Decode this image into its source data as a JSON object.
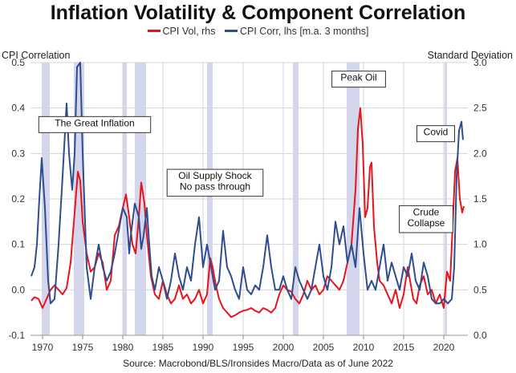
{
  "chart_data": {
    "type": "line",
    "title": "Inflation Volatility & Component Correlation",
    "source": "Source: Macrobond/BLS/Ironsides Macro/Data as of June 2022",
    "left_axis": {
      "label": "CPI Correlation",
      "min": -0.1,
      "max": 0.5,
      "ticks": [
        "-0.1",
        "0.0",
        "0.1",
        "0.2",
        "0.3",
        "0.4",
        "0.5"
      ]
    },
    "right_axis": {
      "label": "Standard Deviation",
      "min": 0.0,
      "max": 3.0,
      "ticks": [
        "0.0",
        "0.5",
        "1.0",
        "1.5",
        "2.0",
        "2.5",
        "3.0"
      ]
    },
    "x_axis": {
      "min": 1968.5,
      "max": 2023,
      "ticks": [
        "1970",
        "1975",
        "1980",
        "1985",
        "1990",
        "1995",
        "2000",
        "2005",
        "2010",
        "2015",
        "2020"
      ]
    },
    "grid": true,
    "legend_position": "top-center",
    "recessions": [
      [
        1969.9,
        1970.9
      ],
      [
        1973.9,
        1975.2
      ],
      [
        1980.0,
        1980.5
      ],
      [
        1981.5,
        1982.9
      ],
      [
        1990.5,
        1991.2
      ],
      [
        2001.2,
        2001.9
      ],
      [
        2007.9,
        2009.5
      ],
      [
        2020.1,
        2020.4
      ]
    ],
    "annotations": [
      {
        "text": "The Great Inflation",
        "x": 1976.5,
        "y_right": 2.3
      },
      {
        "text": "Oil Supply Shock",
        "x": 1991.5,
        "y_right": 1.72
      },
      {
        "text": "No pass through",
        "x": 1991.5,
        "y_right": 1.6
      },
      {
        "text": "Peak Oil",
        "x": 2009.4,
        "y_right": 2.8
      },
      {
        "text": "Covid",
        "x": 2019.0,
        "y_right": 2.2
      },
      {
        "text": "Crude",
        "x": 2017.8,
        "y_right": 1.32
      },
      {
        "text": "Collapse",
        "x": 2017.8,
        "y_right": 1.2
      }
    ],
    "series": [
      {
        "name": "CPI Vol, rhs",
        "axis": "right",
        "color": "#e8141b",
        "points": [
          [
            1968.6,
            0.38
          ],
          [
            1969.0,
            0.42
          ],
          [
            1969.5,
            0.4
          ],
          [
            1970.0,
            0.3
          ],
          [
            1970.5,
            0.4
          ],
          [
            1971.0,
            0.5
          ],
          [
            1971.5,
            0.55
          ],
          [
            1972.0,
            0.5
          ],
          [
            1972.5,
            0.45
          ],
          [
            1973.0,
            0.52
          ],
          [
            1973.5,
            0.8
          ],
          [
            1974.0,
            1.35
          ],
          [
            1974.4,
            1.8
          ],
          [
            1974.7,
            1.7
          ],
          [
            1975.0,
            1.25
          ],
          [
            1975.5,
            0.9
          ],
          [
            1976.0,
            0.7
          ],
          [
            1976.5,
            0.75
          ],
          [
            1977.0,
            0.9
          ],
          [
            1977.5,
            0.8
          ],
          [
            1978.0,
            0.5
          ],
          [
            1978.5,
            0.6
          ],
          [
            1979.0,
            1.1
          ],
          [
            1979.5,
            1.2
          ],
          [
            1980.0,
            1.4
          ],
          [
            1980.4,
            1.55
          ],
          [
            1980.8,
            1.3
          ],
          [
            1981.2,
            1.0
          ],
          [
            1981.6,
            0.9
          ],
          [
            1982.0,
            1.3
          ],
          [
            1982.3,
            1.68
          ],
          [
            1982.7,
            1.45
          ],
          [
            1983.0,
            1.1
          ],
          [
            1983.5,
            0.65
          ],
          [
            1984.0,
            0.45
          ],
          [
            1984.5,
            0.4
          ],
          [
            1985.0,
            0.6
          ],
          [
            1985.5,
            0.45
          ],
          [
            1986.0,
            0.35
          ],
          [
            1986.5,
            0.4
          ],
          [
            1987.0,
            0.55
          ],
          [
            1987.5,
            0.4
          ],
          [
            1988.0,
            0.45
          ],
          [
            1988.5,
            0.35
          ],
          [
            1989.0,
            0.4
          ],
          [
            1989.5,
            0.5
          ],
          [
            1990.0,
            0.35
          ],
          [
            1990.5,
            0.45
          ],
          [
            1990.9,
            0.85
          ],
          [
            1991.2,
            0.75
          ],
          [
            1991.6,
            0.55
          ],
          [
            1992.0,
            0.4
          ],
          [
            1992.5,
            0.3
          ],
          [
            1993.0,
            0.25
          ],
          [
            1993.5,
            0.2
          ],
          [
            1994.0,
            0.22
          ],
          [
            1994.5,
            0.25
          ],
          [
            1995.0,
            0.27
          ],
          [
            1995.5,
            0.28
          ],
          [
            1996.0,
            0.3
          ],
          [
            1996.5,
            0.27
          ],
          [
            1997.0,
            0.25
          ],
          [
            1997.5,
            0.3
          ],
          [
            1998.0,
            0.28
          ],
          [
            1998.5,
            0.25
          ],
          [
            1999.0,
            0.3
          ],
          [
            1999.5,
            0.45
          ],
          [
            2000.0,
            0.55
          ],
          [
            2000.5,
            0.5
          ],
          [
            2001.0,
            0.48
          ],
          [
            2001.5,
            0.4
          ],
          [
            2002.0,
            0.35
          ],
          [
            2002.5,
            0.45
          ],
          [
            2003.0,
            0.6
          ],
          [
            2003.5,
            0.5
          ],
          [
            2004.0,
            0.55
          ],
          [
            2004.5,
            0.45
          ],
          [
            2005.0,
            0.5
          ],
          [
            2005.5,
            0.65
          ],
          [
            2006.0,
            0.6
          ],
          [
            2006.5,
            0.55
          ],
          [
            2007.0,
            0.5
          ],
          [
            2007.5,
            0.6
          ],
          [
            2008.0,
            0.8
          ],
          [
            2008.5,
            1.0
          ],
          [
            2009.0,
            1.6
          ],
          [
            2009.3,
            2.27
          ],
          [
            2009.6,
            2.5
          ],
          [
            2009.9,
            2.1
          ],
          [
            2010.2,
            1.3
          ],
          [
            2010.5,
            1.4
          ],
          [
            2010.8,
            1.85
          ],
          [
            2011.0,
            1.9
          ],
          [
            2011.3,
            1.2
          ],
          [
            2011.7,
            0.8
          ],
          [
            2012.0,
            0.6
          ],
          [
            2012.5,
            0.55
          ],
          [
            2013.0,
            0.45
          ],
          [
            2013.5,
            0.35
          ],
          [
            2014.0,
            0.5
          ],
          [
            2014.5,
            0.3
          ],
          [
            2015.0,
            0.45
          ],
          [
            2015.5,
            0.75
          ],
          [
            2015.8,
            0.6
          ],
          [
            2016.2,
            0.4
          ],
          [
            2016.6,
            0.35
          ],
          [
            2017.0,
            0.55
          ],
          [
            2017.5,
            0.65
          ],
          [
            2018.0,
            0.45
          ],
          [
            2018.5,
            0.5
          ],
          [
            2019.0,
            0.35
          ],
          [
            2019.5,
            0.45
          ],
          [
            2020.0,
            0.3
          ],
          [
            2020.4,
            0.7
          ],
          [
            2020.8,
            0.6
          ],
          [
            2021.1,
            1.2
          ],
          [
            2021.4,
            1.8
          ],
          [
            2021.7,
            1.95
          ],
          [
            2022.0,
            1.5
          ],
          [
            2022.3,
            1.35
          ],
          [
            2022.5,
            1.42
          ]
        ]
      },
      {
        "name": "CPI Corr, lhs [m.a. 3 months]",
        "axis": "left",
        "color": "#2e4d8f",
        "points": [
          [
            1968.6,
            0.03
          ],
          [
            1969.0,
            0.05
          ],
          [
            1969.3,
            0.1
          ],
          [
            1969.6,
            0.2
          ],
          [
            1969.9,
            0.29
          ],
          [
            1970.3,
            0.18
          ],
          [
            1970.7,
            0.02
          ],
          [
            1971.0,
            -0.03
          ],
          [
            1971.5,
            -0.02
          ],
          [
            1972.0,
            0.1
          ],
          [
            1972.5,
            0.25
          ],
          [
            1973.0,
            0.41
          ],
          [
            1973.3,
            0.3
          ],
          [
            1973.7,
            0.22
          ],
          [
            1974.0,
            0.3
          ],
          [
            1974.3,
            0.49
          ],
          [
            1974.7,
            0.5
          ],
          [
            1975.0,
            0.3
          ],
          [
            1975.5,
            0.05
          ],
          [
            1976.0,
            -0.02
          ],
          [
            1976.5,
            0.05
          ],
          [
            1977.0,
            0.1
          ],
          [
            1977.5,
            0.05
          ],
          [
            1978.0,
            0.02
          ],
          [
            1978.5,
            0.04
          ],
          [
            1979.0,
            0.08
          ],
          [
            1979.5,
            0.13
          ],
          [
            1980.0,
            0.18
          ],
          [
            1980.5,
            0.16
          ],
          [
            1980.8,
            0.08
          ],
          [
            1981.0,
            0.12
          ],
          [
            1981.5,
            0.19
          ],
          [
            1982.0,
            0.16
          ],
          [
            1982.3,
            0.09
          ],
          [
            1982.6,
            0.12
          ],
          [
            1983.0,
            0.18
          ],
          [
            1983.3,
            0.1
          ],
          [
            1983.6,
            0.03
          ],
          [
            1984.0,
            0.0
          ],
          [
            1984.5,
            0.05
          ],
          [
            1985.0,
            0.02
          ],
          [
            1985.5,
            -0.02
          ],
          [
            1986.0,
            0.02
          ],
          [
            1986.5,
            0.08
          ],
          [
            1987.0,
            0.03
          ],
          [
            1987.5,
            0.0
          ],
          [
            1988.0,
            0.05
          ],
          [
            1988.5,
            0.02
          ],
          [
            1989.0,
            0.1
          ],
          [
            1989.5,
            0.16
          ],
          [
            1990.0,
            0.05
          ],
          [
            1990.5,
            0.1
          ],
          [
            1991.0,
            0.05
          ],
          [
            1991.5,
            0.0
          ],
          [
            1992.0,
            0.02
          ],
          [
            1992.5,
            0.13
          ],
          [
            1993.0,
            0.05
          ],
          [
            1993.5,
            0.03
          ],
          [
            1994.0,
            0.0
          ],
          [
            1994.5,
            -0.02
          ],
          [
            1995.0,
            0.05
          ],
          [
            1995.5,
            0.0
          ],
          [
            1996.0,
            -0.01
          ],
          [
            1996.5,
            0.01
          ],
          [
            1997.0,
            0.0
          ],
          [
            1997.5,
            0.05
          ],
          [
            1998.0,
            0.12
          ],
          [
            1998.5,
            0.05
          ],
          [
            1999.0,
            0.0
          ],
          [
            1999.5,
            0.0
          ],
          [
            2000.0,
            0.03
          ],
          [
            2000.5,
            0.0
          ],
          [
            2001.0,
            -0.02
          ],
          [
            2001.5,
            0.05
          ],
          [
            2002.0,
            0.02
          ],
          [
            2002.5,
            0.0
          ],
          [
            2003.0,
            -0.02
          ],
          [
            2003.5,
            0.0
          ],
          [
            2004.0,
            0.05
          ],
          [
            2004.5,
            0.1
          ],
          [
            2005.0,
            0.03
          ],
          [
            2005.5,
            0.0
          ],
          [
            2006.0,
            0.05
          ],
          [
            2006.5,
            0.15
          ],
          [
            2007.0,
            0.1
          ],
          [
            2007.5,
            0.14
          ],
          [
            2008.0,
            0.06
          ],
          [
            2008.5,
            0.1
          ],
          [
            2009.0,
            0.05
          ],
          [
            2009.5,
            0.18
          ],
          [
            2010.0,
            0.08
          ],
          [
            2010.5,
            0.0
          ],
          [
            2011.0,
            0.02
          ],
          [
            2011.5,
            0.0
          ],
          [
            2012.0,
            0.05
          ],
          [
            2012.5,
            0.1
          ],
          [
            2013.0,
            0.02
          ],
          [
            2013.5,
            0.06
          ],
          [
            2014.0,
            0.03
          ],
          [
            2014.5,
            0.0
          ],
          [
            2015.0,
            0.05
          ],
          [
            2015.5,
            0.03
          ],
          [
            2016.0,
            0.08
          ],
          [
            2016.5,
            0.02
          ],
          [
            2017.0,
            0.0
          ],
          [
            2017.5,
            0.06
          ],
          [
            2018.0,
            0.03
          ],
          [
            2018.5,
            -0.02
          ],
          [
            2019.0,
            -0.03
          ],
          [
            2019.5,
            -0.03
          ],
          [
            2020.0,
            -0.02
          ],
          [
            2020.5,
            -0.03
          ],
          [
            2021.0,
            -0.02
          ],
          [
            2021.3,
            0.05
          ],
          [
            2021.6,
            0.25
          ],
          [
            2021.9,
            0.35
          ],
          [
            2022.2,
            0.37
          ],
          [
            2022.4,
            0.33
          ]
        ]
      }
    ]
  }
}
